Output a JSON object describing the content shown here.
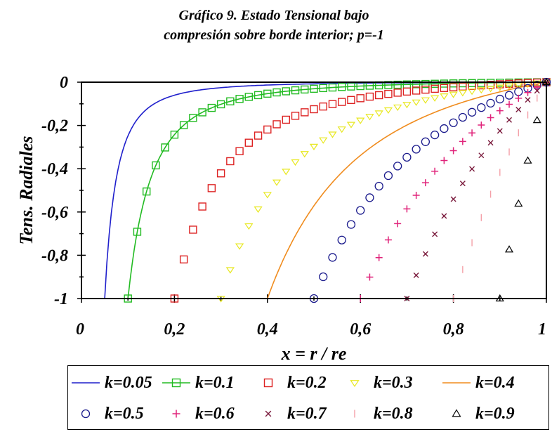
{
  "title": {
    "line1": "Gráfico 9. Estado Tensional bajo",
    "line2": "compresión sobre borde interior; p=-1"
  },
  "chart_data": {
    "type": "scatter",
    "title": "Gráfico 9. Estado Tensional bajo compresión sobre borde interior; p=-1",
    "xlabel": "x = r / re",
    "ylabel": "Tens. Radiales",
    "xlim": [
      0,
      1
    ],
    "ylim": [
      -1,
      0
    ],
    "x_ticks": [
      "0",
      "0,2",
      "0,4",
      "0,6",
      "0,8",
      "1"
    ],
    "y_ticks": [
      "0",
      "-0,2",
      "-0,4",
      "-0,6",
      "-0,8",
      "-1"
    ],
    "grid": false,
    "legend_position": "bottom",
    "series": [
      {
        "name": "k=0.05",
        "k": 0.05,
        "color": "#1f1fcc",
        "marker": "line"
      },
      {
        "name": "k=0.1",
        "k": 0.1,
        "color": "#22bb22",
        "marker": "line-square"
      },
      {
        "name": "k=0.2",
        "k": 0.2,
        "color": "#dd2222",
        "marker": "square"
      },
      {
        "name": "k=0.3",
        "k": 0.3,
        "color": "#e8e820",
        "marker": "triangle-down"
      },
      {
        "name": "k=0.4",
        "k": 0.4,
        "color": "#f08c1e",
        "marker": "line"
      },
      {
        "name": "k=0.5",
        "k": 0.5,
        "color": "#1a1a8c",
        "marker": "circle"
      },
      {
        "name": "k=0.6",
        "k": 0.6,
        "color": "#e0237a",
        "marker": "plus"
      },
      {
        "name": "k=0.7",
        "k": 0.7,
        "color": "#7a1a3c",
        "marker": "x"
      },
      {
        "name": "k=0.8",
        "k": 0.8,
        "color": "#f4a0a8",
        "marker": "bar"
      },
      {
        "name": "k=0.9",
        "k": 0.9,
        "color": "#000000",
        "marker": "triangle-up"
      }
    ]
  }
}
